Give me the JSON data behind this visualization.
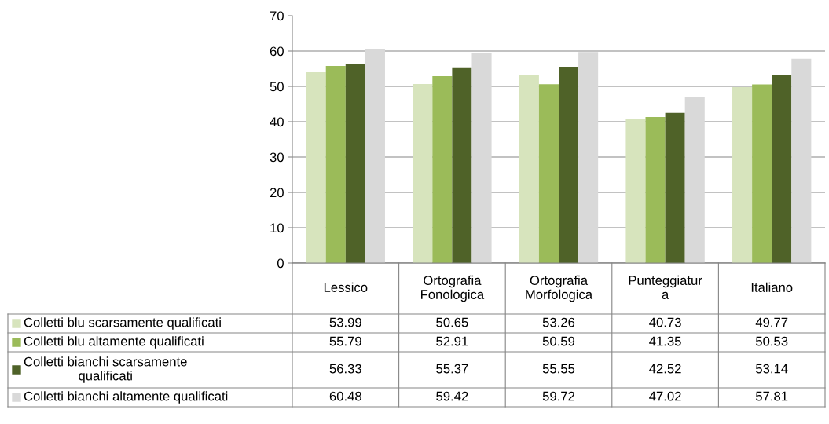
{
  "chart_data": {
    "type": "bar",
    "categories": [
      "Lessico",
      "Ortografia\nFonologica",
      "Ortografia\nMorfologica",
      "Punteggiatur\na",
      "Italiano"
    ],
    "series": [
      {
        "name": "Colletti blu scarsamente qualificati",
        "color": "#d7e4bd",
        "values": [
          53.99,
          50.65,
          53.26,
          40.73,
          49.77
        ]
      },
      {
        "name": "Colletti blu altamente qualificati",
        "color": "#9bbb59",
        "values": [
          55.79,
          52.91,
          50.59,
          41.35,
          50.53
        ]
      },
      {
        "name": "Colletti bianchi scarsamente\nqualificati",
        "color": "#4f6228",
        "values": [
          56.33,
          55.37,
          55.55,
          42.52,
          53.14
        ]
      },
      {
        "name": "Colletti bianchi altamente qualificati",
        "color": "#d9d9d9",
        "values": [
          60.48,
          59.42,
          59.72,
          47.02,
          57.81
        ]
      }
    ],
    "ylim": [
      0,
      70
    ],
    "yticks": [
      0,
      10,
      20,
      30,
      40,
      50,
      60,
      70
    ],
    "grid": "y",
    "data_labels": true,
    "legend": "bottom left"
  }
}
